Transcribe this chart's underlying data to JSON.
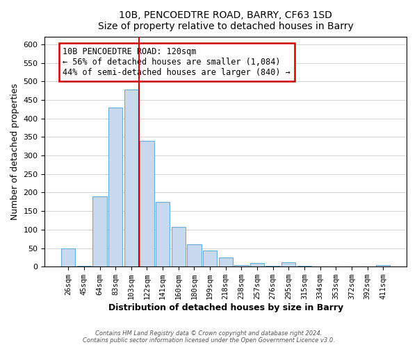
{
  "title": "10B, PENCOEDTRE ROAD, BARRY, CF63 1SD",
  "subtitle": "Size of property relative to detached houses in Barry",
  "xlabel": "Distribution of detached houses by size in Barry",
  "ylabel": "Number of detached properties",
  "bar_color": "#c8d9ee",
  "bar_edge_color": "#6aaad4",
  "categories": [
    "26sqm",
    "45sqm",
    "64sqm",
    "83sqm",
    "103sqm",
    "122sqm",
    "141sqm",
    "160sqm",
    "180sqm",
    "199sqm",
    "218sqm",
    "238sqm",
    "257sqm",
    "276sqm",
    "295sqm",
    "315sqm",
    "334sqm",
    "353sqm",
    "372sqm",
    "392sqm",
    "411sqm"
  ],
  "values": [
    50,
    3,
    190,
    430,
    478,
    340,
    175,
    108,
    60,
    44,
    25,
    5,
    10,
    3,
    12,
    2,
    1,
    1,
    1,
    1,
    5
  ],
  "ylim": [
    0,
    620
  ],
  "yticks": [
    0,
    50,
    100,
    150,
    200,
    250,
    300,
    350,
    400,
    450,
    500,
    550,
    600
  ],
  "vline_x_index": 4.5,
  "vline_color": "#cc0000",
  "annotation_title": "10B PENCOEDTRE ROAD: 120sqm",
  "annotation_line1": "← 56% of detached houses are smaller (1,084)",
  "annotation_line2": "44% of semi-detached houses are larger (840) →",
  "annotation_box_edge": "#cc0000",
  "footnote1": "Contains HM Land Registry data © Crown copyright and database right 2024.",
  "footnote2": "Contains public sector information licensed under the Open Government Licence v3.0."
}
